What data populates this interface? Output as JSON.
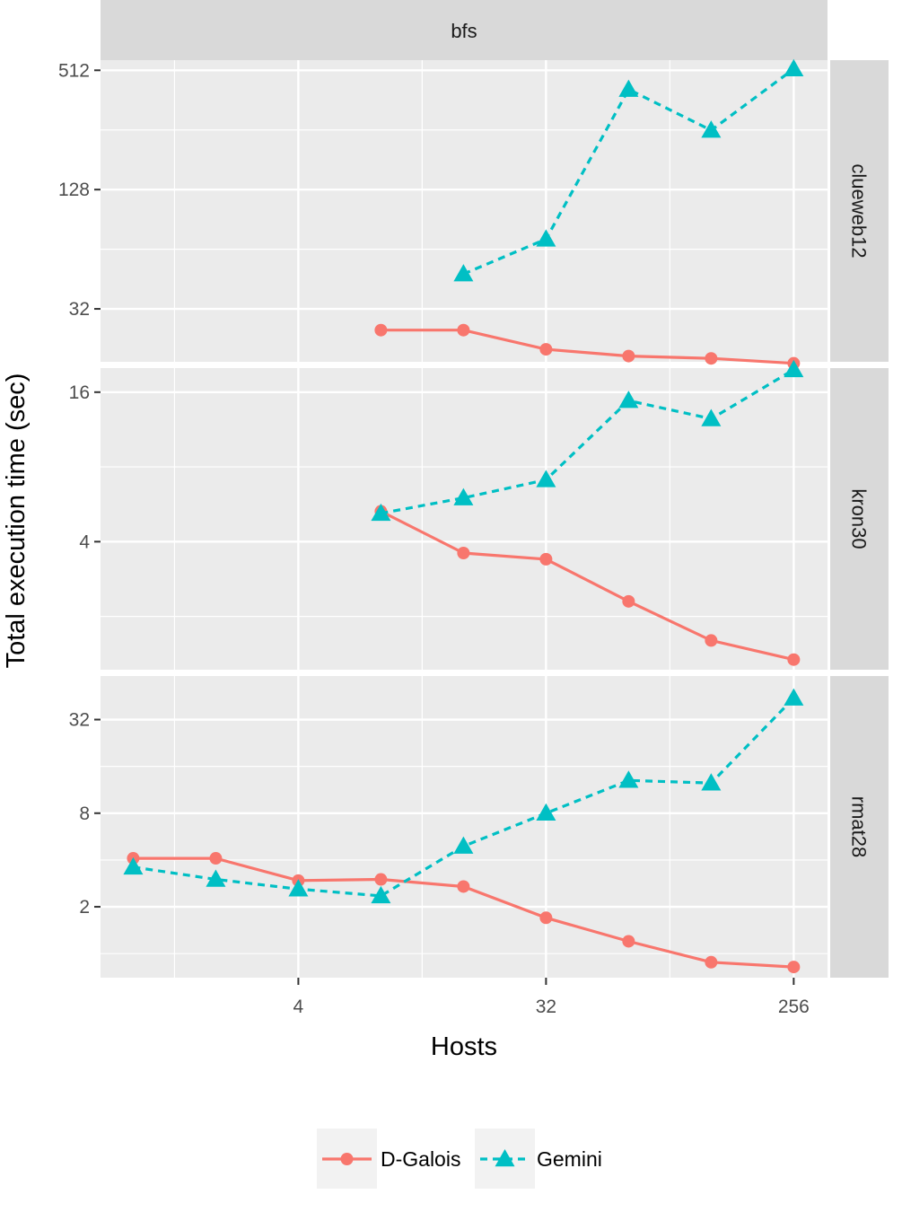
{
  "chart_data": {
    "type": "line",
    "facet_column": "bfs",
    "xlabel": "Hosts",
    "ylabel": "Total execution time (sec)",
    "x_scale": "log2",
    "y_scale": "log2",
    "xlim": [
      0.76,
      340
    ],
    "x_ticks": [
      4,
      32,
      256
    ],
    "x_tick_labels": [
      "4",
      "32",
      "256"
    ],
    "grid": true,
    "legend_position": "bottom",
    "colors": {
      "D-Galois": "#f8766d",
      "Gemini": "#00bfc4"
    },
    "panels": [
      {
        "label": "clueweb12",
        "ylim": [
          17.3,
          576
        ],
        "y_ticks": [
          32,
          128,
          512
        ],
        "y_tick_labels": [
          "32",
          "128",
          "512"
        ],
        "series": [
          {
            "name": "D-Galois",
            "x": [
              8,
              16,
              32,
              64,
              128,
              256
            ],
            "y": [
              25,
              25,
              20,
              18.5,
              18,
              17
            ]
          },
          {
            "name": "Gemini",
            "x": [
              16,
              32,
              64,
              128,
              256
            ],
            "y": [
              48,
              72,
              410,
              255,
              520
            ]
          }
        ]
      },
      {
        "label": "kron30",
        "ylim": [
          1.22,
          20
        ],
        "y_ticks": [
          4,
          16
        ],
        "y_tick_labels": [
          "4",
          "16"
        ],
        "series": [
          {
            "name": "D-Galois",
            "x": [
              8,
              16,
              32,
              64,
              128,
              256
            ],
            "y": [
              5.3,
              3.6,
              3.4,
              2.3,
              1.6,
              1.34
            ]
          },
          {
            "name": "Gemini",
            "x": [
              8,
              16,
              32,
              64,
              128,
              256
            ],
            "y": [
              5.2,
              6.0,
              7.1,
              14.8,
              12.5,
              19.7
            ]
          }
        ]
      },
      {
        "label": "rmat28",
        "ylim": [
          0.7,
          61
        ],
        "y_ticks": [
          2,
          8,
          32
        ],
        "y_tick_labels": [
          "2",
          "8",
          "32"
        ],
        "series": [
          {
            "name": "D-Galois",
            "x": [
              1,
              2,
              4,
              8,
              16,
              32,
              64,
              128,
              256
            ],
            "y": [
              4.1,
              4.1,
              2.95,
              3.0,
              2.7,
              1.7,
              1.2,
              0.88,
              0.82
            ]
          },
          {
            "name": "Gemini",
            "x": [
              1,
              2,
              4,
              8,
              16,
              32,
              64,
              128,
              256
            ],
            "y": [
              3.6,
              3.0,
              2.6,
              2.35,
              4.9,
              8.0,
              13.0,
              12.5,
              44
            ]
          }
        ]
      }
    ],
    "legend": [
      "D-Galois",
      "Gemini"
    ]
  }
}
